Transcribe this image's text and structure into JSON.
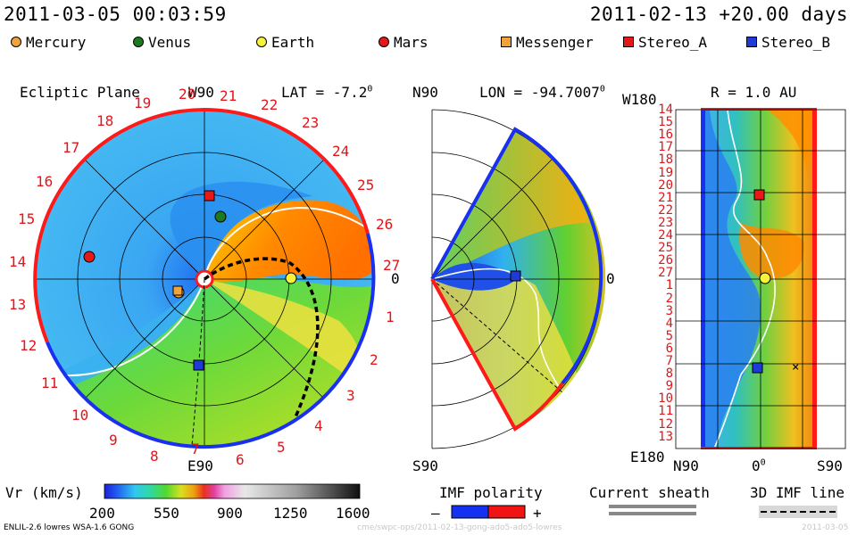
{
  "header": {
    "timestamp": "2011-03-05 00:03:59",
    "reference": "2011-02-13 +20.00 days"
  },
  "legend": [
    {
      "label": "Mercury",
      "shape": "circle",
      "color": "#f2a23a",
      "icon": "mercury-icon"
    },
    {
      "label": "Venus",
      "shape": "circle",
      "color": "#1e7a1e",
      "icon": "venus-icon"
    },
    {
      "label": "Earth",
      "shape": "circle",
      "color": "#f6f23a",
      "icon": "earth-icon"
    },
    {
      "label": "Mars",
      "shape": "circle",
      "color": "#e81818",
      "icon": "mars-icon"
    },
    {
      "label": "Messenger",
      "shape": "square",
      "color": "#f2a23a",
      "icon": "messenger-icon"
    },
    {
      "label": "Stereo_A",
      "shape": "square",
      "color": "#e81818",
      "icon": "stereo-a-icon"
    },
    {
      "label": "Stereo_B",
      "shape": "square",
      "color": "#1e3ad8",
      "icon": "stereo-b-icon"
    }
  ],
  "panels": {
    "ecliptic": {
      "title": "Ecliptic Plane",
      "top_label": "W90",
      "lat_label": "LAT = -7.2",
      "deg": "0",
      "right_label": "0",
      "bottom_label": "E90",
      "rotations": [
        "20",
        "21",
        "22",
        "23",
        "24",
        "25",
        "26",
        "27",
        "1",
        "2",
        "3",
        "4",
        "5",
        "6",
        "7",
        "8",
        "9",
        "10",
        "11",
        "12",
        "13",
        "14",
        "15",
        "16",
        "17",
        "18",
        "19"
      ]
    },
    "meridional": {
      "top_label": "N90",
      "lon_label": "LON = -94.7007",
      "deg": "0",
      "right_label": "0",
      "bottom_label": "S90"
    },
    "radial": {
      "top_left": "W180",
      "r_label": "R = 1.0 AU",
      "rows": [
        "14",
        "15",
        "16",
        "17",
        "18",
        "19",
        "20",
        "21",
        "22",
        "23",
        "24",
        "25",
        "26",
        "27",
        "1",
        "2",
        "3",
        "4",
        "5",
        "6",
        "7",
        "8",
        "9",
        "10",
        "11",
        "12",
        "13"
      ],
      "bottom_left": "E180",
      "x_labels": [
        "N90",
        "0",
        "S90"
      ],
      "x_deg": "0"
    }
  },
  "chart_data": {
    "type": "heatmap",
    "title": "",
    "quantity": "Vr (km/s)",
    "colorbar": {
      "label": "Vr (km/s)",
      "min": 200,
      "max": 1600,
      "ticks": [
        "200",
        "550",
        "900",
        "1250",
        "1600"
      ]
    },
    "bodies": [
      {
        "name": "Mercury",
        "panel": "ecliptic"
      },
      {
        "name": "Venus",
        "panel": "ecliptic"
      },
      {
        "name": "Earth",
        "panel": "ecliptic"
      },
      {
        "name": "Mars",
        "panel": "ecliptic"
      },
      {
        "name": "Messenger",
        "panel": "ecliptic"
      },
      {
        "name": "Stereo_A",
        "panel": "ecliptic"
      },
      {
        "name": "Stereo_B",
        "panel": "ecliptic"
      }
    ]
  },
  "footer_legends": {
    "imf_polarity": {
      "label": "IMF polarity",
      "minus": "–",
      "plus": "+",
      "neg_color": "#1430f0",
      "pos_color": "#f01414"
    },
    "current_sheath": {
      "label": "Current sheath"
    },
    "imf_line": {
      "label": "3D IMF line"
    }
  },
  "credits": {
    "model": "ENLIL-2.6 lowres WSA-1.6 GONG",
    "source": "cme/swpc-ops/2011-02-13-gong-ado5-ado5-lowres",
    "date": "2011-03-05"
  }
}
